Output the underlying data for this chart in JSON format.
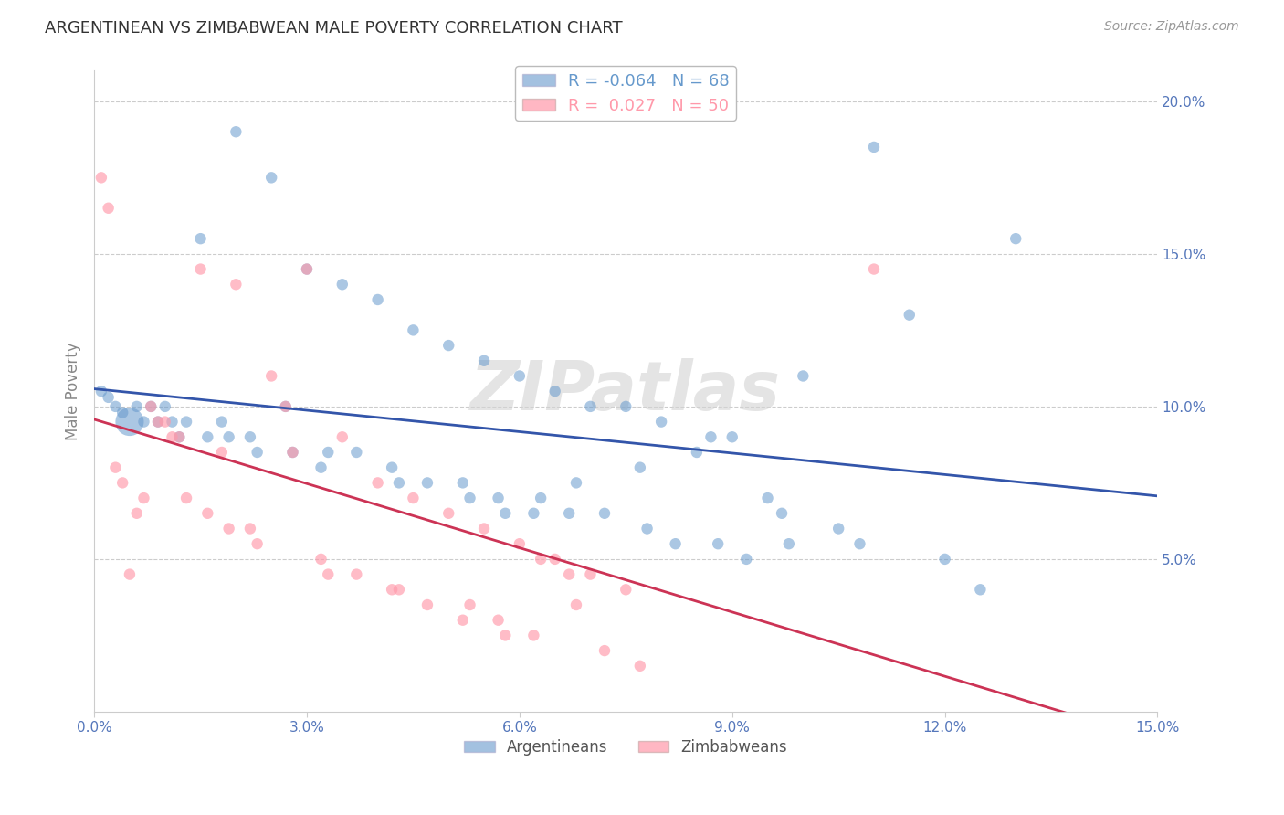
{
  "title": "ARGENTINEAN VS ZIMBABWEAN MALE POVERTY CORRELATION CHART",
  "source": "Source: ZipAtlas.com",
  "ylabel": "Male Poverty",
  "watermark": "ZIPatlas",
  "xlim": [
    0.0,
    0.15
  ],
  "ylim": [
    0.0,
    0.21
  ],
  "xticks": [
    0.0,
    0.03,
    0.06,
    0.09,
    0.12,
    0.15
  ],
  "xtick_labels": [
    "0.0%",
    "3.0%",
    "6.0%",
    "9.0%",
    "12.0%",
    "15.0%"
  ],
  "yticks_right": [
    0.05,
    0.1,
    0.15,
    0.2
  ],
  "ytick_labels_right": [
    "5.0%",
    "10.0%",
    "15.0%",
    "20.0%"
  ],
  "legend_R_blue": "-0.064",
  "legend_N_blue": "68",
  "legend_R_pink": "0.027",
  "legend_N_pink": "50",
  "blue_color": "#6699CC",
  "pink_color": "#FF99AA",
  "line_blue_color": "#3355AA",
  "line_pink_color": "#CC3355",
  "title_color": "#333333",
  "axis_label_color": "#5577BB",
  "grid_color": "#CCCCCC",
  "background_color": "#FFFFFF",
  "argentinean_x": [
    0.001,
    0.002,
    0.003,
    0.004,
    0.005,
    0.006,
    0.007,
    0.008,
    0.009,
    0.01,
    0.011,
    0.012,
    0.013,
    0.015,
    0.016,
    0.018,
    0.019,
    0.02,
    0.022,
    0.023,
    0.025,
    0.027,
    0.028,
    0.03,
    0.032,
    0.033,
    0.035,
    0.037,
    0.04,
    0.042,
    0.043,
    0.045,
    0.047,
    0.05,
    0.052,
    0.053,
    0.055,
    0.057,
    0.058,
    0.06,
    0.062,
    0.063,
    0.065,
    0.067,
    0.068,
    0.07,
    0.072,
    0.075,
    0.077,
    0.078,
    0.08,
    0.082,
    0.085,
    0.087,
    0.088,
    0.09,
    0.092,
    0.095,
    0.097,
    0.098,
    0.1,
    0.105,
    0.108,
    0.11,
    0.115,
    0.12,
    0.125,
    0.13
  ],
  "argentinean_y": [
    0.105,
    0.103,
    0.1,
    0.098,
    0.095,
    0.1,
    0.095,
    0.1,
    0.095,
    0.1,
    0.095,
    0.09,
    0.095,
    0.155,
    0.09,
    0.095,
    0.09,
    0.19,
    0.09,
    0.085,
    0.175,
    0.1,
    0.085,
    0.145,
    0.08,
    0.085,
    0.14,
    0.085,
    0.135,
    0.08,
    0.075,
    0.125,
    0.075,
    0.12,
    0.075,
    0.07,
    0.115,
    0.07,
    0.065,
    0.11,
    0.065,
    0.07,
    0.105,
    0.065,
    0.075,
    0.1,
    0.065,
    0.1,
    0.08,
    0.06,
    0.095,
    0.055,
    0.085,
    0.09,
    0.055,
    0.09,
    0.05,
    0.07,
    0.065,
    0.055,
    0.11,
    0.06,
    0.055,
    0.185,
    0.13,
    0.05,
    0.04,
    0.155
  ],
  "argentinean_size": [
    80,
    80,
    80,
    80,
    500,
    80,
    80,
    80,
    80,
    80,
    80,
    80,
    80,
    80,
    80,
    80,
    80,
    80,
    80,
    80,
    80,
    80,
    80,
    80,
    80,
    80,
    80,
    80,
    80,
    80,
    80,
    80,
    80,
    80,
    80,
    80,
    80,
    80,
    80,
    80,
    80,
    80,
    80,
    80,
    80,
    80,
    80,
    80,
    80,
    80,
    80,
    80,
    80,
    80,
    80,
    80,
    80,
    80,
    80,
    80,
    80,
    80,
    80,
    80,
    80,
    80,
    80,
    80
  ],
  "zimbabwean_x": [
    0.001,
    0.002,
    0.003,
    0.004,
    0.005,
    0.006,
    0.007,
    0.008,
    0.009,
    0.01,
    0.011,
    0.012,
    0.013,
    0.015,
    0.016,
    0.018,
    0.019,
    0.02,
    0.022,
    0.023,
    0.025,
    0.027,
    0.028,
    0.03,
    0.032,
    0.033,
    0.035,
    0.037,
    0.04,
    0.042,
    0.043,
    0.045,
    0.047,
    0.05,
    0.052,
    0.053,
    0.055,
    0.057,
    0.058,
    0.06,
    0.062,
    0.063,
    0.065,
    0.067,
    0.068,
    0.07,
    0.072,
    0.075,
    0.077,
    0.11
  ],
  "zimbabwean_y": [
    0.175,
    0.165,
    0.08,
    0.075,
    0.045,
    0.065,
    0.07,
    0.1,
    0.095,
    0.095,
    0.09,
    0.09,
    0.07,
    0.145,
    0.065,
    0.085,
    0.06,
    0.14,
    0.06,
    0.055,
    0.11,
    0.1,
    0.085,
    0.145,
    0.05,
    0.045,
    0.09,
    0.045,
    0.075,
    0.04,
    0.04,
    0.07,
    0.035,
    0.065,
    0.03,
    0.035,
    0.06,
    0.03,
    0.025,
    0.055,
    0.025,
    0.05,
    0.05,
    0.045,
    0.035,
    0.045,
    0.02,
    0.04,
    0.015,
    0.145
  ]
}
